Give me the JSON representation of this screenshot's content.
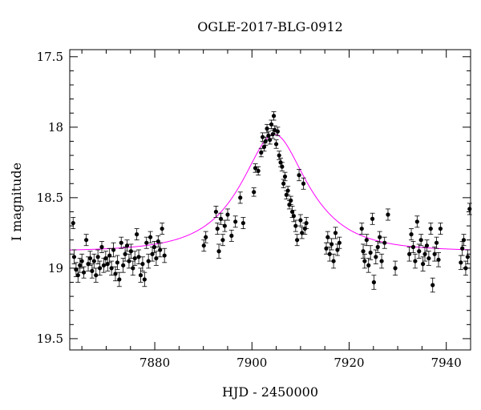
{
  "chart_data": {
    "type": "scatter",
    "title": "OGLE-2017-BLG-0912",
    "xlabel": "HJD - 2450000",
    "ylabel": "I magnitude",
    "xlim": [
      7862.5,
      7945
    ],
    "ylim": [
      19.58,
      17.45
    ],
    "y_inverted": true,
    "grid": false,
    "x_ticks": [
      7880,
      7900,
      7920,
      7940
    ],
    "x_tick_labels": [
      "7880",
      "7900",
      "7920",
      "7940"
    ],
    "y_ticks": [
      17.5,
      18,
      18.5,
      19,
      19.5
    ],
    "y_tick_labels": [
      "17.5",
      "18",
      "18.5",
      "19",
      "19.5"
    ],
    "x_minor_step": 5,
    "y_minor_step": 0.1,
    "model_color": "#ff00ff",
    "point_color": "#000000",
    "model": {
      "t0": 7904.6,
      "baseline": 18.88,
      "peak": 18.05,
      "width": 2.9
    },
    "series": [
      {
        "type": "points",
        "errorbars": true,
        "points": [
          [
            7863.2,
            18.68,
            0.04
          ],
          [
            7863.4,
            18.92,
            0.05
          ],
          [
            7863.8,
            19.01,
            0.05
          ],
          [
            7864.2,
            19.05,
            0.05
          ],
          [
            7864.6,
            18.98,
            0.05
          ],
          [
            7865.0,
            18.95,
            0.05
          ],
          [
            7865.4,
            19.03,
            0.04
          ],
          [
            7865.9,
            18.8,
            0.04
          ],
          [
            7866.3,
            18.97,
            0.05
          ],
          [
            7866.7,
            18.93,
            0.05
          ],
          [
            7867.1,
            19.02,
            0.05
          ],
          [
            7867.5,
            18.95,
            0.05
          ],
          [
            7867.9,
            19.05,
            0.05
          ],
          [
            7868.3,
            18.92,
            0.05
          ],
          [
            7868.7,
            19.0,
            0.05
          ],
          [
            7869.1,
            18.85,
            0.04
          ],
          [
            7869.5,
            18.98,
            0.05
          ],
          [
            7869.9,
            18.93,
            0.05
          ],
          [
            7870.3,
            18.97,
            0.05
          ],
          [
            7870.7,
            18.91,
            0.05
          ],
          [
            7871.1,
            19.0,
            0.05
          ],
          [
            7871.5,
            18.87,
            0.05
          ],
          [
            7871.9,
            19.04,
            0.05
          ],
          [
            7872.3,
            18.96,
            0.05
          ],
          [
            7872.7,
            19.08,
            0.05
          ],
          [
            7873.1,
            18.82,
            0.04
          ],
          [
            7873.5,
            18.98,
            0.05
          ],
          [
            7873.9,
            18.9,
            0.05
          ],
          [
            7874.3,
            18.84,
            0.04
          ],
          [
            7874.7,
            18.95,
            0.05
          ],
          [
            7875.1,
            18.88,
            0.05
          ],
          [
            7875.5,
            19.0,
            0.05
          ],
          [
            7875.9,
            18.93,
            0.05
          ],
          [
            7876.3,
            18.76,
            0.04
          ],
          [
            7876.7,
            18.92,
            0.05
          ],
          [
            7877.1,
            19.05,
            0.05
          ],
          [
            7877.5,
            18.97,
            0.05
          ],
          [
            7877.9,
            19.08,
            0.05
          ],
          [
            7878.3,
            18.82,
            0.04
          ],
          [
            7878.7,
            18.95,
            0.05
          ],
          [
            7879.1,
            18.78,
            0.04
          ],
          [
            7879.5,
            18.9,
            0.05
          ],
          [
            7879.9,
            18.85,
            0.04
          ],
          [
            7880.3,
            18.93,
            0.05
          ],
          [
            7880.7,
            18.81,
            0.04
          ],
          [
            7881.1,
            18.87,
            0.05
          ],
          [
            7881.5,
            18.72,
            0.04
          ],
          [
            7882.0,
            18.91,
            0.05
          ],
          [
            7890.1,
            18.84,
            0.04
          ],
          [
            7890.5,
            18.78,
            0.04
          ],
          [
            7892.6,
            18.6,
            0.04
          ],
          [
            7892.9,
            18.72,
            0.04
          ],
          [
            7893.2,
            18.88,
            0.05
          ],
          [
            7893.6,
            18.65,
            0.04
          ],
          [
            7894.0,
            18.8,
            0.04
          ],
          [
            7894.4,
            18.7,
            0.04
          ],
          [
            7895.0,
            18.62,
            0.04
          ],
          [
            7895.8,
            18.77,
            0.04
          ],
          [
            7896.6,
            18.67,
            0.04
          ],
          [
            7897.6,
            18.5,
            0.04
          ],
          [
            7898.2,
            18.68,
            0.04
          ],
          [
            7900.4,
            18.46,
            0.03
          ],
          [
            7900.7,
            18.29,
            0.03
          ],
          [
            7901.3,
            18.31,
            0.03
          ],
          [
            7901.9,
            18.18,
            0.03
          ],
          [
            7902.2,
            18.07,
            0.03
          ],
          [
            7902.5,
            18.14,
            0.03
          ],
          [
            7902.8,
            18.1,
            0.03
          ],
          [
            7903.1,
            18.01,
            0.03
          ],
          [
            7903.4,
            18.06,
            0.03
          ],
          [
            7903.7,
            18.09,
            0.03
          ],
          [
            7904.0,
            17.98,
            0.03
          ],
          [
            7904.3,
            18.05,
            0.03
          ],
          [
            7904.5,
            17.92,
            0.03
          ],
          [
            7904.7,
            18.02,
            0.03
          ],
          [
            7905.0,
            18.12,
            0.03
          ],
          [
            7905.3,
            18.03,
            0.03
          ],
          [
            7905.6,
            18.2,
            0.03
          ],
          [
            7905.9,
            18.25,
            0.03
          ],
          [
            7906.2,
            18.28,
            0.03
          ],
          [
            7906.5,
            18.4,
            0.03
          ],
          [
            7906.8,
            18.35,
            0.03
          ],
          [
            7907.1,
            18.48,
            0.03
          ],
          [
            7907.4,
            18.45,
            0.03
          ],
          [
            7907.7,
            18.55,
            0.03
          ],
          [
            7908.0,
            18.52,
            0.03
          ],
          [
            7908.3,
            18.6,
            0.04
          ],
          [
            7908.6,
            18.63,
            0.04
          ],
          [
            7909.0,
            18.7,
            0.04
          ],
          [
            7909.3,
            18.8,
            0.04
          ],
          [
            7909.7,
            18.34,
            0.04
          ],
          [
            7910.0,
            18.66,
            0.04
          ],
          [
            7910.3,
            18.75,
            0.04
          ],
          [
            7910.6,
            18.4,
            0.04
          ],
          [
            7910.9,
            18.72,
            0.04
          ],
          [
            7911.2,
            18.68,
            0.04
          ],
          [
            7915.3,
            18.86,
            0.04
          ],
          [
            7915.6,
            18.78,
            0.04
          ],
          [
            7916.0,
            18.9,
            0.05
          ],
          [
            7916.4,
            18.83,
            0.04
          ],
          [
            7916.8,
            18.95,
            0.05
          ],
          [
            7917.2,
            18.75,
            0.04
          ],
          [
            7917.6,
            18.87,
            0.04
          ],
          [
            7918.0,
            18.82,
            0.04
          ],
          [
            7922.6,
            18.72,
            0.04
          ],
          [
            7922.9,
            18.88,
            0.05
          ],
          [
            7923.2,
            18.95,
            0.05
          ],
          [
            7923.6,
            18.8,
            0.04
          ],
          [
            7924.0,
            18.98,
            0.05
          ],
          [
            7924.4,
            18.89,
            0.05
          ],
          [
            7924.8,
            18.65,
            0.04
          ],
          [
            7925.1,
            19.1,
            0.05
          ],
          [
            7925.5,
            18.92,
            0.05
          ],
          [
            7925.9,
            18.85,
            0.04
          ],
          [
            7926.3,
            18.78,
            0.04
          ],
          [
            7926.7,
            18.95,
            0.05
          ],
          [
            7927.3,
            18.82,
            0.04
          ],
          [
            7928.0,
            18.62,
            0.04
          ],
          [
            7929.5,
            19.0,
            0.05
          ],
          [
            7932.4,
            18.9,
            0.05
          ],
          [
            7932.8,
            18.76,
            0.04
          ],
          [
            7933.2,
            18.85,
            0.04
          ],
          [
            7933.6,
            18.95,
            0.05
          ],
          [
            7934.0,
            18.67,
            0.04
          ],
          [
            7934.4,
            18.88,
            0.05
          ],
          [
            7934.8,
            18.8,
            0.04
          ],
          [
            7935.2,
            18.97,
            0.05
          ],
          [
            7935.6,
            18.9,
            0.05
          ],
          [
            7936.0,
            18.84,
            0.04
          ],
          [
            7936.4,
            18.93,
            0.05
          ],
          [
            7936.8,
            18.72,
            0.04
          ],
          [
            7937.2,
            19.12,
            0.05
          ],
          [
            7937.6,
            18.9,
            0.05
          ],
          [
            7938.0,
            18.82,
            0.04
          ],
          [
            7938.4,
            18.94,
            0.05
          ],
          [
            7938.8,
            18.72,
            0.04
          ],
          [
            7943.0,
            18.96,
            0.05
          ],
          [
            7943.3,
            18.86,
            0.05
          ],
          [
            7943.6,
            18.8,
            0.04
          ],
          [
            7944.0,
            19.0,
            0.05
          ],
          [
            7944.4,
            18.92,
            0.05
          ],
          [
            7944.8,
            18.58,
            0.04
          ]
        ]
      }
    ]
  }
}
